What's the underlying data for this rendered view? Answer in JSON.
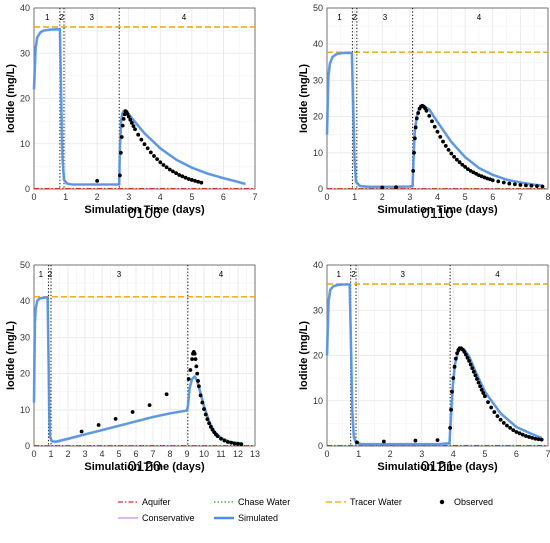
{
  "figure": {
    "legend": {
      "items": [
        {
          "key": "aquifer",
          "label": "Aquifer",
          "color": "#d0312d",
          "style": "dashdot"
        },
        {
          "key": "chase",
          "label": "Chase Water",
          "color": "#2ca02c",
          "style": "dotted"
        },
        {
          "key": "tracer",
          "label": "Tracer Water",
          "color": "#f0a30a",
          "style": "dashed"
        },
        {
          "key": "observed",
          "label": "Observed",
          "color": "#000000",
          "style": "point"
        },
        {
          "key": "conservative",
          "label": "Conservative",
          "color": "#c58be8",
          "style": "solid"
        },
        {
          "key": "simulated",
          "label": "Simulated",
          "color": "#4a90e2",
          "style": "solid"
        }
      ]
    }
  },
  "chart_data": [
    {
      "type": "line",
      "panel_label": "0106",
      "xlabel": "Simulation Time (days)",
      "ylabel": "Iodide (mg/L)",
      "xlim": [
        0,
        7
      ],
      "ylim": [
        0,
        40
      ],
      "xticks": [
        0,
        1,
        2,
        3,
        4,
        5,
        6,
        7
      ],
      "yticks": [
        0,
        10,
        20,
        30,
        40
      ],
      "grid": true,
      "phase_lines": [
        0.82,
        0.95,
        2.7
      ],
      "phases": [
        {
          "label": "1",
          "x": 0.42
        },
        {
          "label": "2",
          "x": 0.88
        },
        {
          "label": "3",
          "x": 1.83
        },
        {
          "label": "4",
          "x": 4.75
        }
      ],
      "tracer_level": 35.8,
      "series": [
        {
          "key": "simulated",
          "x": [
            0,
            0.05,
            0.1,
            0.2,
            0.3,
            0.5,
            0.7,
            0.82,
            0.86,
            0.9,
            0.95,
            1.05,
            1.2,
            1.5,
            2.0,
            2.5,
            2.7,
            2.72,
            2.76,
            2.8,
            2.85,
            2.9,
            2.95,
            3.0,
            3.2,
            3.5,
            4.0,
            4.5,
            5.0,
            5.5,
            6.0,
            6.5,
            6.7
          ],
          "y": [
            22,
            31,
            33.5,
            34.6,
            35.0,
            35.2,
            35.3,
            35.3,
            20,
            7,
            2,
            1.2,
            1.0,
            1.0,
            1.0,
            1.0,
            1.0,
            9,
            15,
            16.8,
            17.3,
            17.2,
            16.9,
            16.5,
            14.8,
            12.3,
            9.0,
            6.5,
            4.7,
            3.4,
            2.4,
            1.5,
            1.1
          ]
        },
        {
          "key": "observed",
          "x": [
            2.0,
            2.72,
            2.75,
            2.78,
            2.81,
            2.84,
            2.87,
            2.9,
            2.93,
            2.96,
            3.0,
            3.05,
            3.1,
            3.15,
            3.2,
            3.3,
            3.4,
            3.5,
            3.6,
            3.7,
            3.8,
            3.9,
            4.0,
            4.1,
            4.2,
            4.3,
            4.4,
            4.5,
            4.6,
            4.7,
            4.8,
            4.9,
            5.0,
            5.1,
            5.2,
            5.3
          ],
          "y": [
            1.8,
            3.0,
            8.0,
            11.5,
            14.0,
            15.5,
            16.5,
            17.2,
            17.0,
            16.6,
            16.0,
            15.3,
            14.6,
            13.9,
            13.2,
            12.0,
            10.9,
            9.9,
            9.0,
            8.1,
            7.3,
            6.6,
            5.9,
            5.3,
            4.8,
            4.3,
            3.9,
            3.5,
            3.1,
            2.8,
            2.5,
            2.2,
            2.0,
            1.8,
            1.6,
            1.4
          ]
        }
      ]
    },
    {
      "type": "line",
      "panel_label": "0110",
      "xlabel": "Simulation Time (days)",
      "ylabel": "Iodide (mg/L)",
      "xlim": [
        0,
        8
      ],
      "ylim": [
        0,
        50
      ],
      "xticks": [
        0,
        1,
        2,
        3,
        4,
        5,
        6,
        7,
        8
      ],
      "yticks": [
        0,
        10,
        20,
        30,
        40,
        50
      ],
      "grid": true,
      "phase_lines": [
        0.92,
        1.08,
        3.1
      ],
      "phases": [
        {
          "label": "1",
          "x": 0.45
        },
        {
          "label": "2",
          "x": 1.0
        },
        {
          "label": "3",
          "x": 2.1
        },
        {
          "label": "4",
          "x": 5.5
        }
      ],
      "tracer_level": 37.8,
      "series": [
        {
          "key": "simulated",
          "x": [
            0,
            0.05,
            0.1,
            0.2,
            0.35,
            0.6,
            0.9,
            0.95,
            1.0,
            1.05,
            1.2,
            1.5,
            2.0,
            2.5,
            3.0,
            3.1,
            3.13,
            3.18,
            3.25,
            3.35,
            3.5,
            3.7,
            4.0,
            4.5,
            5.0,
            5.5,
            6.0,
            6.5,
            7.0,
            7.5,
            7.8
          ],
          "y": [
            15,
            31,
            34.5,
            36.5,
            37.3,
            37.6,
            37.6,
            22,
            8,
            2,
            0.8,
            0.6,
            0.6,
            0.6,
            0.7,
            0.8,
            8,
            16,
            20,
            22.3,
            22.9,
            22,
            18.5,
            13,
            8.8,
            5.8,
            3.9,
            2.6,
            1.8,
            1.2,
            0.9
          ]
        },
        {
          "key": "observed",
          "x": [
            2.0,
            2.5,
            3.12,
            3.15,
            3.18,
            3.21,
            3.25,
            3.3,
            3.35,
            3.4,
            3.45,
            3.5,
            3.55,
            3.6,
            3.7,
            3.8,
            3.9,
            4.0,
            4.1,
            4.2,
            4.3,
            4.4,
            4.5,
            4.6,
            4.7,
            4.8,
            4.9,
            5.0,
            5.1,
            5.2,
            5.3,
            5.4,
            5.5,
            5.6,
            5.7,
            5.8,
            5.9,
            6.0,
            6.2,
            6.4,
            6.6,
            6.8,
            7.0,
            7.2,
            7.4,
            7.6,
            7.8
          ],
          "y": [
            0.4,
            0.5,
            5,
            10,
            14,
            17,
            19.5,
            21,
            22.2,
            22.8,
            23.0,
            22.8,
            22.3,
            21.6,
            20.2,
            18.7,
            17.2,
            15.8,
            14.4,
            13.1,
            11.9,
            10.8,
            9.8,
            8.9,
            8.1,
            7.4,
            6.7,
            6.1,
            5.5,
            5.0,
            4.6,
            4.2,
            3.8,
            3.5,
            3.2,
            2.9,
            2.7,
            2.4,
            2.1,
            1.8,
            1.5,
            1.3,
            1.1,
            1.0,
            0.9,
            0.8,
            0.7
          ]
        }
      ]
    },
    {
      "type": "line",
      "panel_label": "0120",
      "xlabel": "Simulation Time (days)",
      "ylabel": "Iodide (mg/L)",
      "xlim": [
        0,
        13
      ],
      "ylim": [
        0,
        50
      ],
      "xticks": [
        0,
        1,
        2,
        3,
        4,
        5,
        6,
        7,
        8,
        9,
        10,
        11,
        12,
        13
      ],
      "yticks": [
        0,
        10,
        20,
        30,
        40,
        50
      ],
      "grid": true,
      "phase_lines": [
        0.85,
        1.0,
        9.05
      ],
      "phases": [
        {
          "label": "1",
          "x": 0.4
        },
        {
          "label": "2",
          "x": 0.95
        },
        {
          "label": "3",
          "x": 5.0
        },
        {
          "label": "4",
          "x": 11.0
        }
      ],
      "tracer_level": 41.2,
      "series": [
        {
          "key": "simulated",
          "x": [
            0,
            0.05,
            0.1,
            0.2,
            0.35,
            0.6,
            0.8,
            0.85,
            0.9,
            0.95,
            1.05,
            1.3,
            2.0,
            3.0,
            4.0,
            5.0,
            6.0,
            7.0,
            8.0,
            9.0,
            9.05,
            9.15,
            9.3,
            9.45,
            9.6,
            9.8,
            10.0,
            10.3,
            10.6,
            11.0,
            11.5,
            12.0,
            12.2
          ],
          "y": [
            12,
            34,
            38,
            40.2,
            40.8,
            41.0,
            41.0,
            25,
            8,
            2.5,
            1.3,
            1.2,
            2.0,
            3.2,
            4.4,
            5.6,
            6.8,
            8.0,
            9.0,
            9.8,
            11,
            16,
            18.5,
            19.2,
            18.0,
            14.5,
            11.0,
            6.8,
            4.0,
            2.2,
            1.2,
            0.8,
            0.7
          ]
        },
        {
          "key": "observed",
          "x": [
            2.8,
            3.8,
            4.8,
            5.8,
            6.8,
            7.8,
            9.1,
            9.2,
            9.3,
            9.35,
            9.4,
            9.45,
            9.5,
            9.55,
            9.6,
            9.65,
            9.7,
            9.8,
            9.9,
            10.0,
            10.1,
            10.2,
            10.3,
            10.4,
            10.5,
            10.6,
            10.7,
            10.8,
            11.0,
            11.2,
            11.4,
            11.6,
            11.8,
            12.0,
            12.2
          ],
          "y": [
            4,
            5.8,
            7.5,
            9.4,
            11.3,
            14.3,
            18.5,
            21,
            24,
            25.5,
            26,
            25.5,
            24,
            22,
            20,
            18,
            16.5,
            14,
            12,
            10.2,
            8.7,
            7.4,
            6.3,
            5.3,
            4.5,
            3.8,
            3.2,
            2.7,
            2.0,
            1.5,
            1.1,
            0.9,
            0.7,
            0.6,
            0.5
          ]
        }
      ]
    },
    {
      "type": "line",
      "panel_label": "0121",
      "xlabel": "Simulation Time (days)",
      "ylabel": "Iodide (mg/L)",
      "xlim": [
        0,
        7
      ],
      "ylim": [
        0,
        40
      ],
      "xticks": [
        0,
        1,
        2,
        3,
        4,
        5,
        6,
        7
      ],
      "yticks": [
        0,
        10,
        20,
        30,
        40
      ],
      "grid": true,
      "phase_lines": [
        0.75,
        0.92,
        3.9
      ],
      "phases": [
        {
          "label": "1",
          "x": 0.37
        },
        {
          "label": "2",
          "x": 0.84
        },
        {
          "label": "3",
          "x": 2.4
        },
        {
          "label": "4",
          "x": 5.4
        }
      ],
      "tracer_level": 35.8,
      "series": [
        {
          "key": "simulated",
          "x": [
            0,
            0.05,
            0.1,
            0.2,
            0.35,
            0.5,
            0.72,
            0.76,
            0.8,
            0.85,
            0.92,
            1.1,
            1.5,
            2.0,
            2.5,
            3.0,
            3.5,
            3.88,
            3.92,
            3.98,
            4.05,
            4.15,
            4.25,
            4.35,
            4.5,
            4.7,
            5.0,
            5.5,
            6.0,
            6.5,
            6.8
          ],
          "y": [
            20,
            32,
            34.5,
            35.3,
            35.6,
            35.7,
            35.7,
            22,
            8,
            2,
            0.7,
            0.4,
            0.4,
            0.4,
            0.4,
            0.4,
            0.4,
            0.6,
            6,
            13,
            18,
            20.7,
            21.6,
            21.3,
            19.8,
            16.5,
            12.0,
            7.2,
            4.2,
            2.6,
            1.8
          ]
        },
        {
          "key": "observed",
          "x": [
            0.95,
            1.8,
            2.8,
            3.5,
            3.9,
            3.93,
            3.96,
            4.0,
            4.04,
            4.08,
            4.12,
            4.16,
            4.2,
            4.25,
            4.3,
            4.35,
            4.4,
            4.45,
            4.5,
            4.55,
            4.6,
            4.65,
            4.7,
            4.75,
            4.8,
            4.85,
            4.9,
            4.95,
            5.0,
            5.1,
            5.2,
            5.3,
            5.4,
            5.5,
            5.6,
            5.7,
            5.8,
            5.9,
            6.0,
            6.1,
            6.2,
            6.3,
            6.4,
            6.5,
            6.6,
            6.7,
            6.8
          ],
          "y": [
            0.8,
            1.0,
            1.2,
            1.3,
            4,
            8,
            12,
            15,
            17.5,
            19.3,
            20.5,
            21.2,
            21.6,
            21.6,
            21.3,
            20.8,
            20.2,
            19.5,
            18.8,
            18.0,
            17.2,
            16.4,
            15.6,
            14.8,
            14.0,
            13.2,
            12.4,
            11.7,
            11.0,
            9.7,
            8.5,
            7.5,
            6.6,
            5.8,
            5.1,
            4.5,
            4.0,
            3.5,
            3.1,
            2.8,
            2.5,
            2.2,
            2.0,
            1.8,
            1.6,
            1.5,
            1.4
          ]
        }
      ]
    }
  ]
}
